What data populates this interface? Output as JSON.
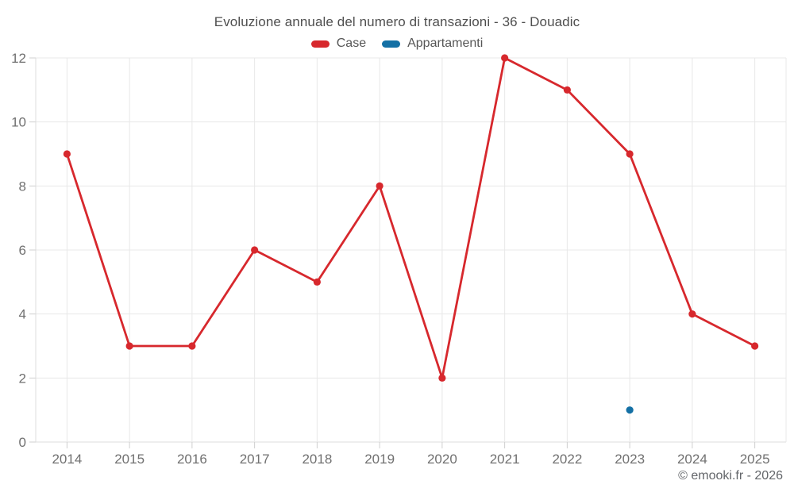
{
  "title": "Evoluzione annuale del numero di transazioni - 36 - Douadic",
  "legend": {
    "items": [
      {
        "label": "Case",
        "color": "#d7282d"
      },
      {
        "label": "Appartamenti",
        "color": "#1470a5"
      }
    ]
  },
  "footer": {
    "copyright": "© emooki.fr - 2026"
  },
  "styles": {
    "background": "#ffffff",
    "grid_color": "#e8e8e8",
    "axis_color": "#dcdcdc",
    "tick_color": "#cfcfcf",
    "tick_label_color": "#707070",
    "title_color": "#4f4f4f",
    "copyright_color": "#63666a",
    "case_color": "#d7282d",
    "appartamenti_color": "#1470a5"
  },
  "chart_data": {
    "type": "line",
    "title": "Evoluzione annuale del numero di transazioni - 36 - Douadic",
    "categories": [
      "2014",
      "2015",
      "2016",
      "2017",
      "2018",
      "2019",
      "2020",
      "2021",
      "2022",
      "2023",
      "2024",
      "2025"
    ],
    "series": [
      {
        "name": "Case",
        "type": "line",
        "color": "#d7282d",
        "values": [
          9,
          3,
          3,
          6,
          5,
          8,
          2,
          12,
          11,
          9,
          4,
          3
        ]
      },
      {
        "name": "Appartamenti",
        "type": "scatter",
        "color": "#1470a5",
        "values": [
          null,
          null,
          null,
          null,
          null,
          null,
          null,
          null,
          null,
          1,
          null,
          null
        ]
      }
    ],
    "xlabel": "",
    "ylabel": "",
    "ylim": [
      0,
      12
    ],
    "yticks": [
      0,
      2,
      4,
      6,
      8,
      10,
      12
    ],
    "grid": true,
    "legend_position": "top",
    "legend_entries": [
      "Case",
      "Appartamenti"
    ]
  }
}
